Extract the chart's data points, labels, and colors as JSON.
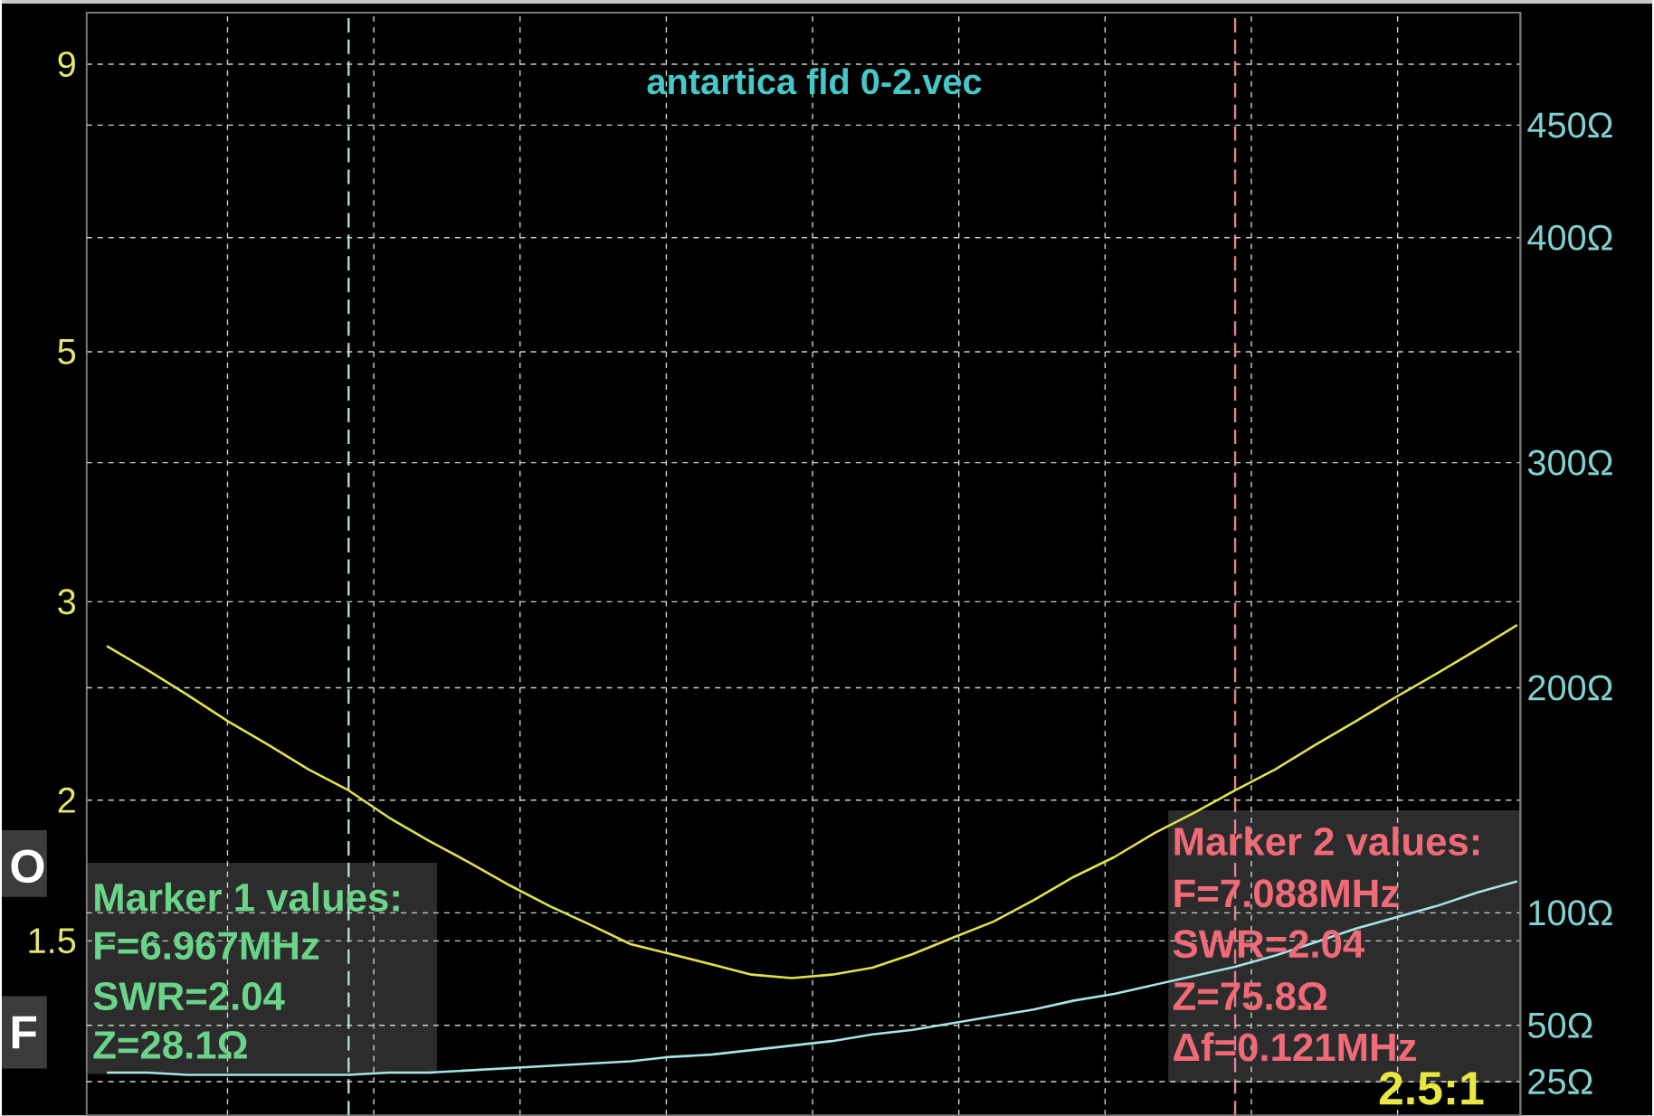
{
  "chart_data": {
    "type": "line",
    "title": "antartica fld 0-2.vec",
    "categories": [
      null,
      null,
      null,
      null,
      null,
      null,
      null,
      null,
      null,
      null,
      null,
      null,
      null,
      null,
      null,
      null,
      null,
      null,
      null,
      null,
      null,
      null,
      null,
      null,
      null,
      null,
      null,
      null,
      null,
      null,
      null,
      null,
      null,
      null,
      null,
      null
    ],
    "series": [
      {
        "color": "#e2e24a",
        "values": [
          2.74,
          2.61,
          2.48,
          2.35,
          2.24,
          2.13,
          2.04,
          1.93,
          1.84,
          1.76,
          1.68,
          1.61,
          1.55,
          1.49,
          1.46,
          1.43,
          1.4,
          1.39,
          1.4,
          1.42,
          1.46,
          1.51,
          1.56,
          1.63,
          1.71,
          1.78,
          1.87,
          1.95,
          2.04,
          2.13,
          2.24,
          2.35,
          2.47,
          2.59,
          2.72,
          2.86
        ]
      },
      {
        "color": "#a8e4e4",
        "axis": "y2",
        "values": [
          29,
          29,
          28,
          28,
          28,
          28,
          28,
          29,
          29,
          30,
          31,
          32,
          33,
          34,
          36,
          37,
          39,
          41,
          43,
          46,
          48,
          51,
          54,
          57,
          61,
          64,
          68,
          72,
          76,
          81,
          87,
          93,
          98,
          103,
          109,
          114
        ]
      }
    ],
    "ylim": [
      1.05,
      10
    ],
    "yticks": [
      1.5,
      2,
      3,
      5,
      9
    ],
    "log": "y",
    "y2lim": [
      10,
      500
    ],
    "y2ticks": [
      {
        "value": 25,
        "label": "25Ω"
      },
      {
        "value": 50,
        "label": "50Ω"
      },
      {
        "value": 100,
        "label": "100Ω"
      },
      {
        "value": 200,
        "label": "200Ω"
      },
      {
        "value": 300,
        "label": "300Ω"
      },
      {
        "value": 400,
        "label": "400Ω"
      },
      {
        "value": 450,
        "label": "450Ω"
      }
    ],
    "grid": true,
    "tick_labels": "y",
    "annotations": [
      "Marker 1 values:",
      "F=6.967MHz",
      "SWR=2.04",
      "Z=28.1Ω",
      "Marker 2 values:",
      "F=7.088MHz",
      "SWR=2.04",
      "Z=75.8Ω",
      "Δf=0.121MHz",
      "2.5:1",
      "O",
      "F"
    ]
  }
}
